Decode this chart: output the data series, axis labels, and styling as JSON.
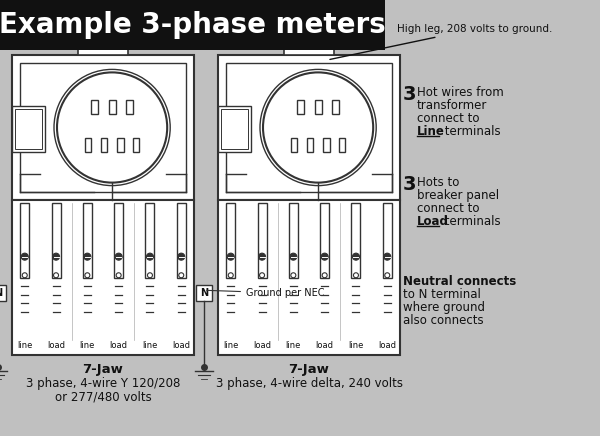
{
  "title": "Example 3-phase meters",
  "title_bg": "#111111",
  "title_fg": "#ffffff",
  "bg_color": "#c0c0c0",
  "meter_bg": "#ffffff",
  "meter_border": "#333333",
  "annotation1": "High leg, 208 volts to ground.",
  "ann2_bold": "3",
  "ann2_l1": " Hot wires from",
  "ann2_l2": "transformer",
  "ann2_l3": "connect to",
  "ann2_l4_normal": "",
  "ann2_l4_underline": "Line",
  "ann2_l4_rest": " terminals",
  "ann3_bold": "3",
  "ann3_l1": " Hots to",
  "ann3_l2": "breaker panel",
  "ann3_l3": "connect to",
  "ann3_l4_underline": "Load",
  "ann3_l4_rest": " terminals",
  "ann4_l1": "Neutral connects",
  "ann4_l2": "to N terminal",
  "ann4_l3": "where ground",
  "ann4_l4": "also connects",
  "label1_l1": "7-Jaw",
  "label1_l2": "3 phase, 4-wire Y 120/208",
  "label1_l3": "or 277/480 volts",
  "label2_l1": "7-Jaw",
  "label2_l2": "3 phase, 4-wire delta, 240 volts",
  "ground_label": "Ground per NEC",
  "N_label": "N",
  "term_labels": [
    "line",
    "load",
    "line",
    "load",
    "line",
    "load"
  ]
}
